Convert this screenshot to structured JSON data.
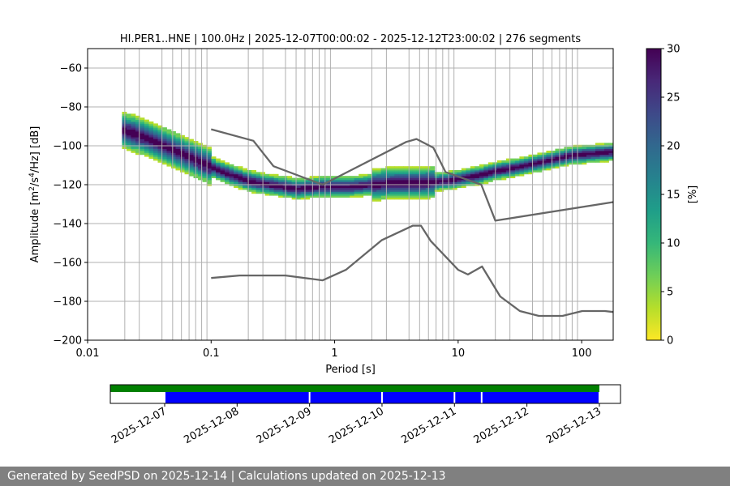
{
  "footer_text": "Generated by SeedPSD on 2025-12-14 | Calculations updated on 2025-12-13",
  "chart_data": {
    "type": "heatmap",
    "title": "HI.PER1..HNE | 100.0Hz | 2025-12-07T00:00:02 - 2025-12-12T23:00:02 | 276 segments",
    "xlabel": "Period [s]",
    "ylabel": "Amplitude [m²/s⁴/Hz] [dB]",
    "x_scale": "log",
    "xlim": [
      0.01,
      180
    ],
    "ylim": [
      -200,
      -50
    ],
    "grid": true,
    "x_ticks": [
      {
        "value": 0.01,
        "label": "0.01"
      },
      {
        "value": 0.1,
        "label": "0.1"
      },
      {
        "value": 1,
        "label": "1"
      },
      {
        "value": 10,
        "label": "10"
      },
      {
        "value": 100,
        "label": "100"
      }
    ],
    "y_ticks": [
      {
        "value": -60,
        "label": "−60"
      },
      {
        "value": -80,
        "label": "−80"
      },
      {
        "value": -100,
        "label": "−100"
      },
      {
        "value": -120,
        "label": "−120"
      },
      {
        "value": -140,
        "label": "−140"
      },
      {
        "value": -160,
        "label": "−160"
      },
      {
        "value": -180,
        "label": "−180"
      },
      {
        "value": -200,
        "label": "−200"
      }
    ],
    "vertical_period_lines": [
      0.02,
      0.0262,
      0.04,
      0.0488,
      0.0575,
      0.0663,
      0.075,
      0.0838,
      0.0925,
      0.2,
      0.2625,
      0.4,
      0.4875,
      0.575,
      0.6625,
      0.75,
      0.8375,
      0.925,
      2,
      2.625,
      4,
      4.875,
      5.75,
      6.625,
      7.5,
      8.375,
      9.25,
      20,
      26.25,
      40,
      48.75,
      57.5,
      66.25,
      75,
      83.75,
      92.5
    ],
    "colorbar": {
      "label": "[%]",
      "range": [
        0,
        30
      ],
      "ticks": [
        0,
        5,
        10,
        15,
        20,
        25,
        30
      ],
      "colors": [
        "#fde725",
        "#b5de2b",
        "#6ece58",
        "#35b779",
        "#1f9e89",
        "#26828e",
        "#31688e",
        "#3e4989",
        "#482878",
        "#440154"
      ]
    },
    "psd_mode": {
      "periods": [
        0.02,
        0.03,
        0.05,
        0.08,
        0.12,
        0.2,
        0.3,
        0.5,
        0.8,
        1.3,
        2,
        3,
        5,
        8,
        10,
        15,
        20,
        30,
        50,
        80,
        120,
        180
      ],
      "db": [
        -92,
        -96,
        -102,
        -108,
        -113,
        -118,
        -120,
        -122,
        -121,
        -121,
        -120,
        -119,
        -119,
        -118,
        -117,
        -115,
        -113,
        -111,
        -108,
        -105,
        -104,
        -103
      ]
    },
    "noise_models": [
      {
        "name": "high",
        "periods": [
          0.1,
          0.22,
          0.32,
          0.8,
          3.8,
          4.6,
          6.3,
          7.9,
          15.4,
          20,
          354.8
        ],
        "db": [
          -91.5,
          -97.4,
          -110.5,
          -120,
          -98,
          -96.5,
          -101,
          -113.5,
          -120,
          -138.5,
          -126
        ]
      },
      {
        "name": "low",
        "periods": [
          0.1,
          0.17,
          0.4,
          0.8,
          1.24,
          2.4,
          4.3,
          5,
          6,
          10,
          12,
          15.6,
          21.9,
          31.6,
          45,
          70,
          101,
          154,
          328
        ],
        "db": [
          -168,
          -166.7,
          -166.7,
          -169.2,
          -163.7,
          -148.6,
          -141.1,
          -141.1,
          -149,
          -163.8,
          -166.2,
          -162.1,
          -177.5,
          -185,
          -187.5,
          -187.5,
          -185,
          -185,
          -187.5
        ]
      }
    ],
    "timeline": {
      "date_ticks": [
        "2025-12-07",
        "2025-12-08",
        "2025-12-09",
        "2025-12-10",
        "2025-12-11",
        "2025-12-12",
        "2025-12-13"
      ],
      "range_start": "2025-12-06T06:00:00",
      "range_end": "2025-12-13T07:00:00",
      "available": [
        [
          "2025-12-06T06:00:00",
          "2025-12-13T00:00:00"
        ]
      ],
      "used": [
        [
          "2025-12-07T00:00:00",
          "2025-12-09T00:00:00"
        ],
        [
          "2025-12-09T00:00:00",
          "2025-12-10T00:00:00"
        ],
        [
          "2025-12-10T00:00:00",
          "2025-12-11T00:00:00"
        ],
        [
          "2025-12-11T00:00:00",
          "2025-12-11T09:00:00"
        ],
        [
          "2025-12-11T09:00:00",
          "2025-12-13T00:00:00"
        ]
      ],
      "available_color": "#008000",
      "used_color": "#0000ff"
    }
  }
}
